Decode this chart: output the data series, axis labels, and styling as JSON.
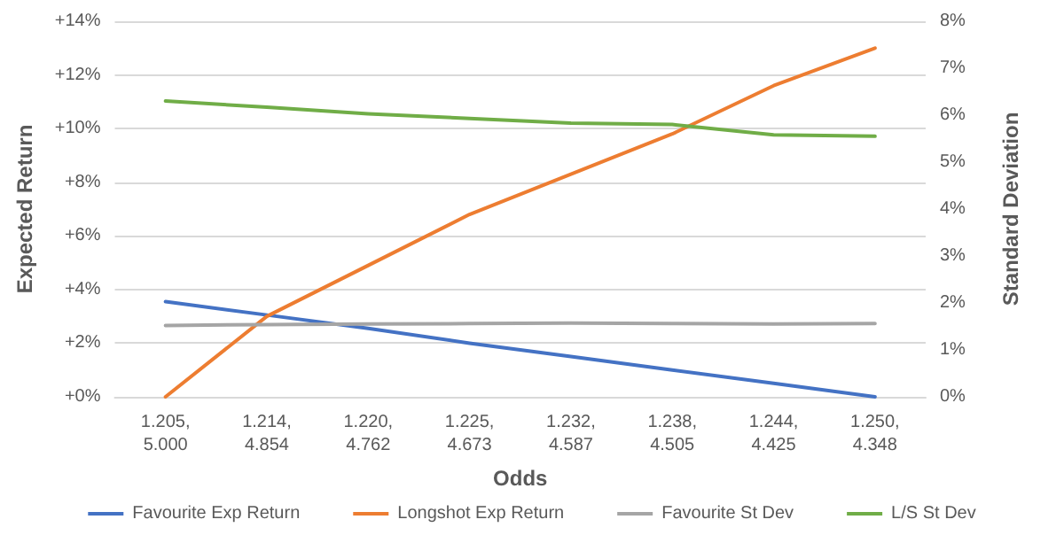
{
  "chart_data": {
    "type": "line",
    "xlabel": "Odds",
    "ylabel": "Expected Return",
    "y2label": "Standard Deviation",
    "categories": [
      "1.205,\n5.000",
      "1.214,\n4.854",
      "1.220,\n4.762",
      "1.225,\n4.673",
      "1.232,\n4.587",
      "1.238,\n4.505",
      "1.244,\n4.425",
      "1.250,\n4.348"
    ],
    "series": [
      {
        "name": "Favourite Exp Return",
        "color": "#4472c4",
        "values": [
          3.55,
          3.05,
          2.55,
          2.0,
          1.5,
          1.0,
          0.5,
          0.0
        ]
      },
      {
        "name": "Longshot Exp Return",
        "color": "#ed7d31",
        "values": [
          0.0,
          3.0,
          4.9,
          6.8,
          8.3,
          9.8,
          11.6,
          13.0
        ]
      },
      {
        "name": "Favourite St Dev",
        "color": "#a5a5a5",
        "axis": "y2",
        "values": [
          1.52,
          1.54,
          1.55,
          1.56,
          1.57,
          1.56,
          1.55,
          1.56
        ]
      },
      {
        "name": "L/S St Dev",
        "color": "#70ad47",
        "axis": "y2",
        "values": [
          6.3,
          6.17,
          6.03,
          5.93,
          5.83,
          5.8,
          5.58,
          5.55
        ]
      }
    ],
    "ylim": [
      0,
      14
    ],
    "yticks": [
      {
        "value": 0,
        "label": "+0%"
      },
      {
        "value": 2,
        "label": "+2%"
      },
      {
        "value": 4,
        "label": "+4%"
      },
      {
        "value": 6,
        "label": "+6%"
      },
      {
        "value": 8,
        "label": "+8%"
      },
      {
        "value": 10,
        "label": "+10%"
      },
      {
        "value": 12,
        "label": "+12%"
      },
      {
        "value": 14,
        "label": "+14%"
      }
    ],
    "y2lim": [
      0,
      8
    ],
    "y2ticks": [
      {
        "value": 0,
        "label": "0%"
      },
      {
        "value": 1,
        "label": "1%"
      },
      {
        "value": 2,
        "label": "2%"
      },
      {
        "value": 3,
        "label": "3%"
      },
      {
        "value": 4,
        "label": "4%"
      },
      {
        "value": 5,
        "label": "5%"
      },
      {
        "value": 6,
        "label": "6%"
      },
      {
        "value": 7,
        "label": "7%"
      },
      {
        "value": 8,
        "label": "8%"
      }
    ],
    "grid": "y",
    "legend": "bottom",
    "marker": "none",
    "line_style": "solid"
  }
}
